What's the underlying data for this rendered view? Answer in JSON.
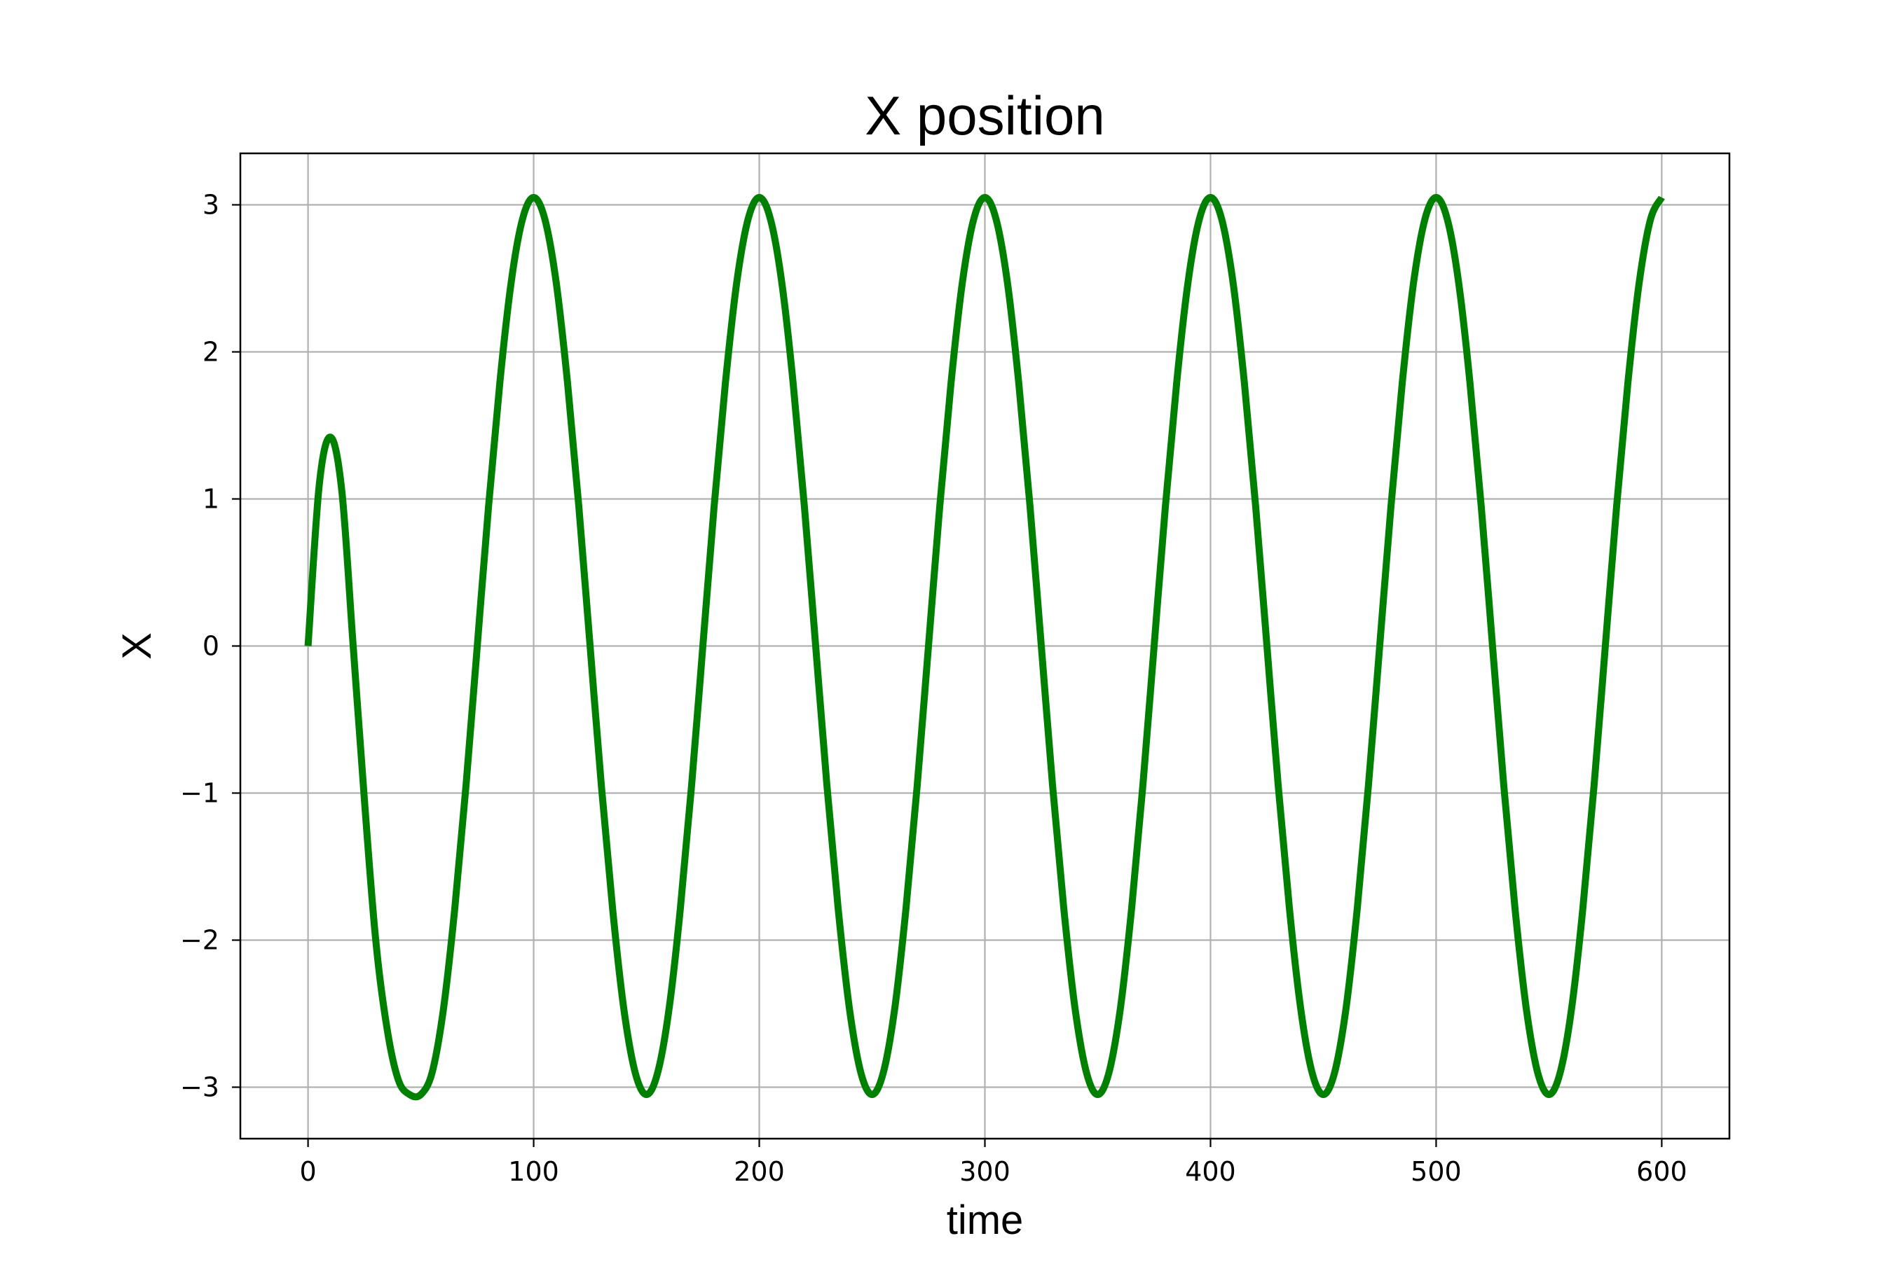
{
  "chart_data": {
    "type": "line",
    "title": "X position",
    "xlabel": "time",
    "ylabel": "X",
    "xlim": [
      -30,
      630
    ],
    "ylim": [
      -3.35,
      3.35
    ],
    "xticks": [
      0,
      100,
      200,
      300,
      400,
      500,
      600
    ],
    "xtick_labels": [
      "0",
      "100",
      "200",
      "300",
      "400",
      "500",
      "600"
    ],
    "yticks": [
      -3,
      -2,
      -1,
      0,
      1,
      2,
      3
    ],
    "ytick_labels": [
      "−3",
      "−2",
      "−1",
      "0",
      "1",
      "2",
      "3"
    ],
    "grid": true,
    "legend": "none",
    "line_color": "#008000",
    "grid_color": "#b0b0b0",
    "series": [
      {
        "x": [
          0,
          5,
          10,
          15,
          20,
          25,
          30,
          35,
          40,
          45,
          50,
          55,
          60,
          65,
          70,
          75,
          80,
          85,
          90,
          95,
          100,
          105,
          110,
          115,
          120,
          125,
          130,
          135,
          140,
          145,
          150,
          155,
          160,
          165,
          170,
          175,
          180,
          185,
          190,
          195,
          200,
          205,
          210,
          215,
          220,
          225,
          230,
          235,
          240,
          245,
          250,
          255,
          260,
          265,
          270,
          275,
          280,
          285,
          290,
          295,
          300,
          305,
          310,
          315,
          320,
          325,
          330,
          335,
          340,
          345,
          350,
          355,
          360,
          365,
          370,
          375,
          380,
          385,
          390,
          395,
          400,
          405,
          410,
          415,
          420,
          425,
          430,
          435,
          440,
          445,
          450,
          455,
          460,
          465,
          470,
          475,
          480,
          485,
          490,
          495,
          500,
          505,
          510,
          515,
          520,
          525,
          530,
          535,
          540,
          545,
          550,
          555,
          560,
          565,
          570,
          575,
          580,
          585,
          590,
          595,
          600
        ],
        "values": [
          0.0,
          1.1,
          1.42,
          1.05,
          0.0,
          -1.05,
          -2.0,
          -2.6,
          -2.95,
          -3.05,
          -3.05,
          -2.9,
          -2.47,
          -1.79,
          -0.95,
          0.0,
          0.95,
          1.79,
          2.47,
          2.9,
          3.05,
          2.9,
          2.47,
          1.79,
          0.95,
          0.0,
          -0.95,
          -1.79,
          -2.47,
          -2.9,
          -3.05,
          -2.9,
          -2.47,
          -1.79,
          -0.95,
          0.0,
          0.95,
          1.79,
          2.47,
          2.9,
          3.05,
          2.9,
          2.47,
          1.79,
          0.95,
          0.0,
          -0.95,
          -1.79,
          -2.47,
          -2.9,
          -3.05,
          -2.9,
          -2.47,
          -1.79,
          -0.95,
          0.0,
          0.95,
          1.79,
          2.47,
          2.9,
          3.05,
          2.9,
          2.47,
          1.79,
          0.95,
          0.0,
          -0.95,
          -1.79,
          -2.47,
          -2.9,
          -3.05,
          -2.9,
          -2.47,
          -1.79,
          -0.95,
          0.0,
          0.95,
          1.79,
          2.47,
          2.9,
          3.05,
          2.9,
          2.47,
          1.79,
          0.95,
          0.0,
          -0.95,
          -1.79,
          -2.47,
          -2.9,
          -3.05,
          -2.9,
          -2.47,
          -1.79,
          -0.95,
          0.0,
          0.95,
          1.79,
          2.47,
          2.9,
          3.05,
          2.9,
          2.47,
          1.79,
          0.95,
          0.0,
          -0.95,
          -1.79,
          -2.47,
          -2.9,
          -3.05,
          -2.9,
          -2.47,
          -1.79,
          -0.95,
          0.0,
          0.95,
          1.79,
          2.47,
          2.9,
          3.05
        ]
      }
    ]
  }
}
